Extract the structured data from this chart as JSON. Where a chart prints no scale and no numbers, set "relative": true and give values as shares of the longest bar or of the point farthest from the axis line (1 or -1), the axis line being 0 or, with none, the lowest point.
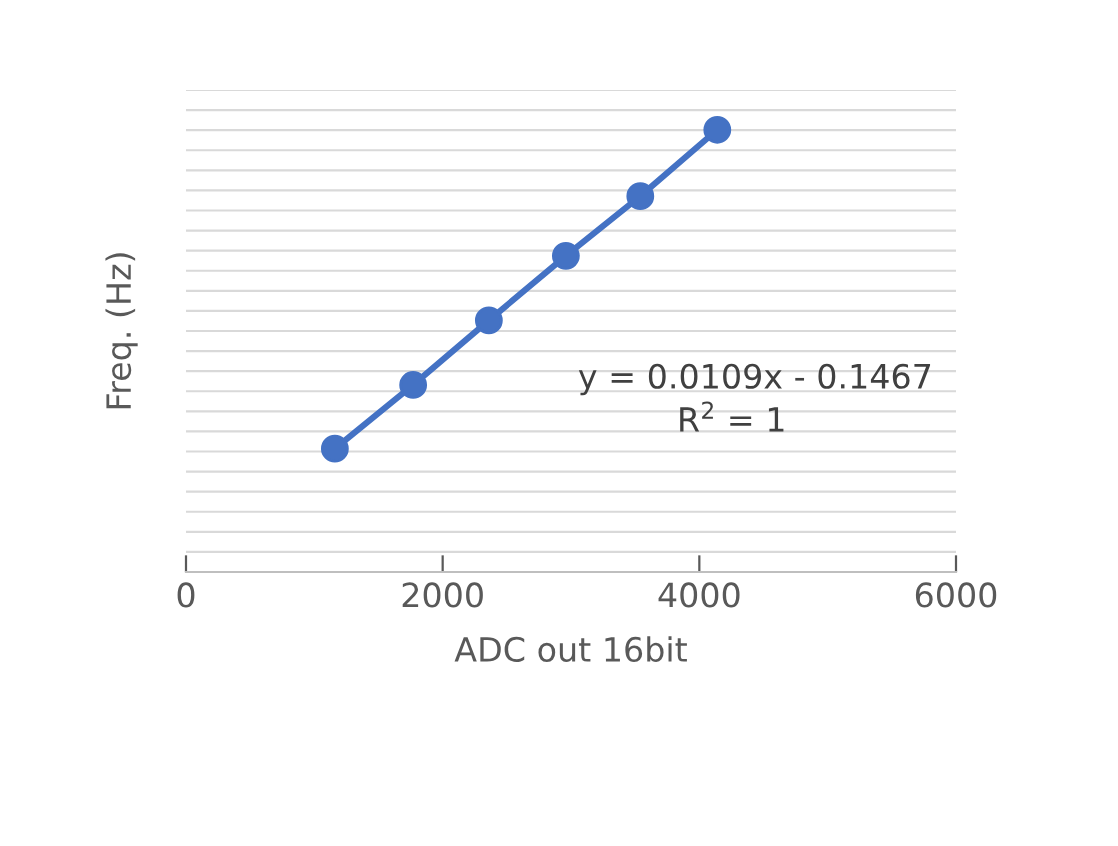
{
  "chart_data": {
    "type": "line",
    "xlabel": "ADC out 16bit",
    "ylabel": "Freq. (Hz)",
    "relative": true,
    "x": [
      1160,
      1770,
      2360,
      2960,
      3540,
      4140
    ],
    "series": [
      {
        "color": "#4472c4",
        "values": [
          0.279,
          0.423,
          0.569,
          0.715,
          0.85,
          1.0
        ]
      }
    ],
    "xlim": [
      0,
      6000
    ],
    "xticks": [
      0,
      2000,
      4000,
      6000
    ],
    "marker": "circle",
    "line_style": "solid",
    "grid": "y",
    "legend": false,
    "annotations": [
      "y = 0.0109x - 0.1467",
      "R$^{2}$ = 1"
    ]
  }
}
